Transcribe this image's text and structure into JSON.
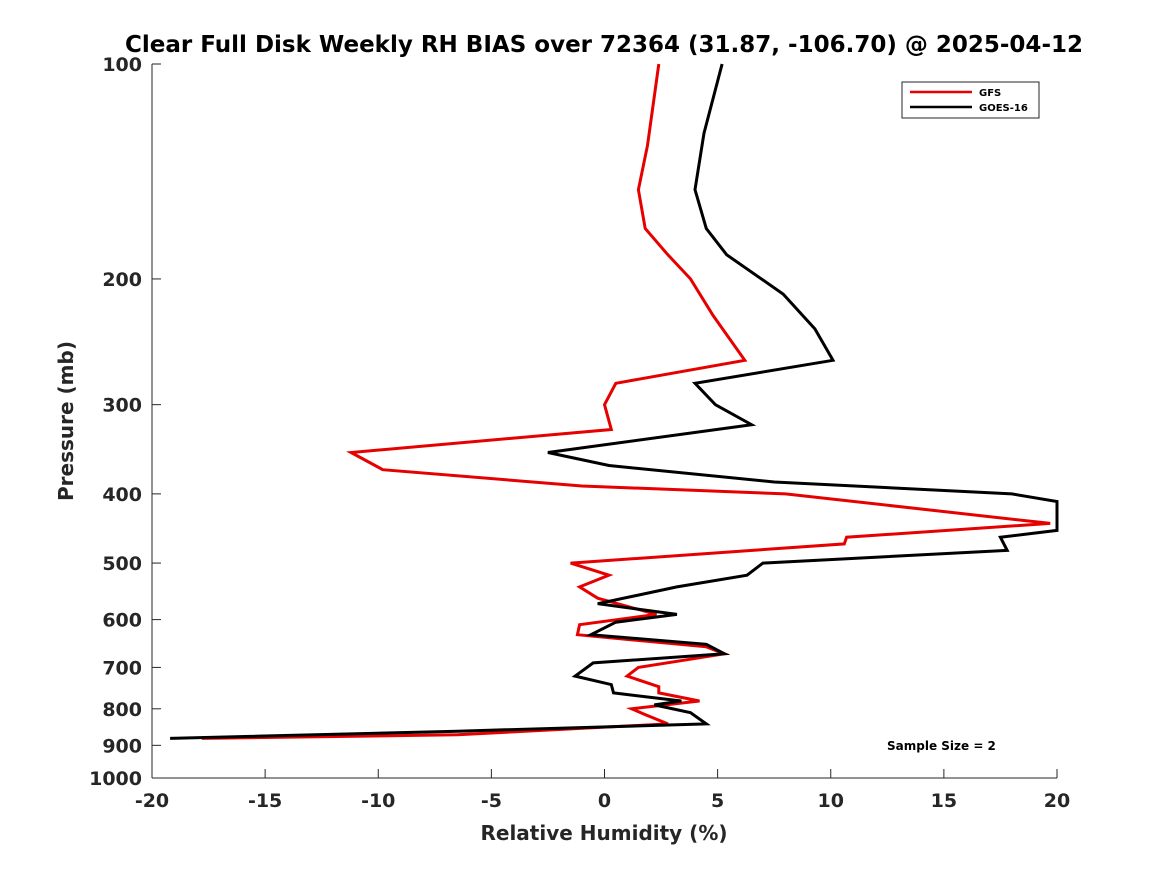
{
  "chart_data": {
    "type": "line",
    "title": "Clear Full Disk Weekly RH BIAS over 72364 (31.87, -106.70) @ 2025-04-12",
    "xlabel": "Relative Humidity (%)",
    "ylabel": "Pressure (mb)",
    "xlim": [
      -20,
      20
    ],
    "ylim": [
      100,
      1000
    ],
    "yscale": "log",
    "y_reversed": true,
    "xticks": [
      -20,
      -15,
      -10,
      -5,
      0,
      5,
      10,
      15,
      20
    ],
    "xtick_labels": [
      "-20",
      "-15",
      "-10",
      "-5",
      "0",
      "5",
      "10",
      "15",
      "20"
    ],
    "yticks": [
      100,
      200,
      300,
      400,
      500,
      600,
      700,
      800,
      900,
      1000
    ],
    "ytick_labels": [
      "100",
      "200",
      "300",
      "400",
      "500",
      "600",
      "700",
      "800",
      "900",
      "1000"
    ],
    "grid": false,
    "legend_position": "top-right",
    "annotation": "Sample Size = 2",
    "series": [
      {
        "name": "GFS",
        "color": "#e60000",
        "points": [
          [
            2.4,
            100
          ],
          [
            1.9,
            130
          ],
          [
            1.5,
            150
          ],
          [
            1.8,
            170
          ],
          [
            2.8,
            185
          ],
          [
            3.8,
            200
          ],
          [
            4.8,
            225
          ],
          [
            6.2,
            260
          ],
          [
            0.5,
            280
          ],
          [
            0.0,
            300
          ],
          [
            0.3,
            325
          ],
          [
            -11.2,
            350
          ],
          [
            -9.8,
            370
          ],
          [
            -1.0,
            390
          ],
          [
            8.0,
            400
          ],
          [
            19.7,
            440
          ],
          [
            10.7,
            460
          ],
          [
            10.6,
            470
          ],
          [
            -1.5,
            500
          ],
          [
            0.2,
            520
          ],
          [
            -1.1,
            540
          ],
          [
            -0.3,
            560
          ],
          [
            2.3,
            590
          ],
          [
            -1.1,
            610
          ],
          [
            -1.2,
            630
          ],
          [
            4.5,
            655
          ],
          [
            5.3,
            670
          ],
          [
            1.5,
            700
          ],
          [
            1.0,
            720
          ],
          [
            2.4,
            745
          ],
          [
            2.4,
            760
          ],
          [
            4.2,
            780
          ],
          [
            1.2,
            800
          ],
          [
            1.8,
            815
          ],
          [
            2.8,
            840
          ],
          [
            -6.5,
            870
          ],
          [
            -17.8,
            880
          ]
        ]
      },
      {
        "name": "GOES-16",
        "color": "#000000",
        "points": [
          [
            5.2,
            100
          ],
          [
            4.4,
            125
          ],
          [
            4.0,
            150
          ],
          [
            4.5,
            170
          ],
          [
            5.4,
            185
          ],
          [
            7.9,
            210
          ],
          [
            9.3,
            235
          ],
          [
            10.1,
            260
          ],
          [
            4.0,
            280
          ],
          [
            4.9,
            300
          ],
          [
            6.5,
            320
          ],
          [
            -2.5,
            350
          ],
          [
            0.2,
            365
          ],
          [
            7.5,
            385
          ],
          [
            18.0,
            400
          ],
          [
            20.0,
            410
          ],
          [
            20.0,
            450
          ],
          [
            17.5,
            460
          ],
          [
            17.8,
            480
          ],
          [
            7.0,
            500
          ],
          [
            6.3,
            520
          ],
          [
            3.2,
            540
          ],
          [
            -0.3,
            570
          ],
          [
            3.2,
            590
          ],
          [
            0.5,
            605
          ],
          [
            -0.6,
            630
          ],
          [
            4.5,
            650
          ],
          [
            5.3,
            670
          ],
          [
            -0.5,
            690
          ],
          [
            -1.3,
            720
          ],
          [
            0.3,
            740
          ],
          [
            0.4,
            760
          ],
          [
            3.4,
            780
          ],
          [
            2.2,
            790
          ],
          [
            3.8,
            810
          ],
          [
            4.5,
            840
          ],
          [
            -6.5,
            860
          ],
          [
            -19.2,
            880
          ]
        ]
      }
    ]
  }
}
